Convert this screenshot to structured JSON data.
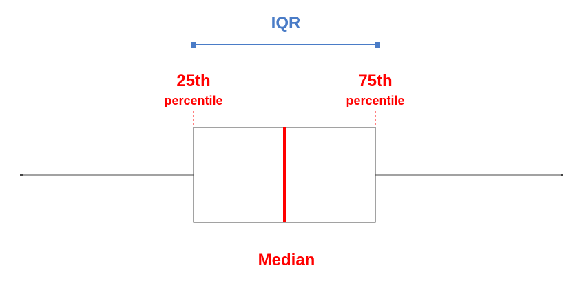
{
  "colors": {
    "iqr": "#4a7cc7",
    "accent": "#ff0000",
    "outline": "#444444"
  },
  "labels": {
    "iqr": "IQR",
    "p25_value": "25th",
    "p25_word": "percentile",
    "p75_value": "75th",
    "p75_word": "percentile",
    "median": "Median"
  }
}
